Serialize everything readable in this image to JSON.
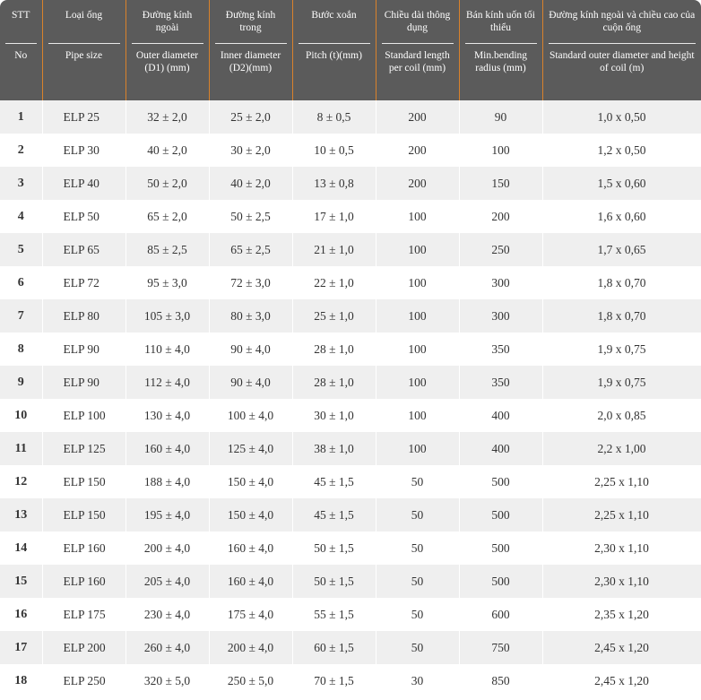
{
  "header": [
    {
      "vi": "STT",
      "en": "No"
    },
    {
      "vi": "Loại ống",
      "en": "Pipe size"
    },
    {
      "vi": "Đường kính ngoài",
      "en": "Outer diameter (D1) (mm)"
    },
    {
      "vi": "Đường kính trong",
      "en": "Inner diameter (D2)(mm)"
    },
    {
      "vi": "Bước xoắn",
      "en": "Pitch (t)(mm)"
    },
    {
      "vi": "Chiều dài thông dụng",
      "en": "Standard length per coil (mm)"
    },
    {
      "vi": "Bán kính uốn tối thiểu",
      "en": "Min.bending radius (mm)"
    },
    {
      "vi": "Đường kính ngoài và chiều cao của cuộn ống",
      "en": "Standard outer diameter and height of coil (m)"
    }
  ],
  "rows": [
    [
      "1",
      "ELP 25",
      "32 ± 2,0",
      "25 ± 2,0",
      "8 ± 0,5",
      "200",
      "90",
      "1,0 x 0,50"
    ],
    [
      "2",
      "ELP 30",
      "40 ± 2,0",
      "30 ± 2,0",
      "10 ± 0,5",
      "200",
      "100",
      "1,2 x 0,50"
    ],
    [
      "3",
      "ELP 40",
      "50 ± 2,0",
      "40 ± 2,0",
      "13 ± 0,8",
      "200",
      "150",
      "1,5 x 0,60"
    ],
    [
      "4",
      "ELP 50",
      "65 ± 2,0",
      "50 ± 2,5",
      "17 ± 1,0",
      "100",
      "200",
      "1,6 x 0,60"
    ],
    [
      "5",
      "ELP 65",
      "85 ± 2,5",
      "65 ± 2,5",
      "21 ± 1,0",
      "100",
      "250",
      "1,7 x 0,65"
    ],
    [
      "6",
      "ELP 72",
      "95 ± 3,0",
      "72 ± 3,0",
      "22 ± 1,0",
      "100",
      "300",
      "1,8 x 0,70"
    ],
    [
      "7",
      "ELP 80",
      "105 ± 3,0",
      "80 ± 3,0",
      "25 ± 1,0",
      "100",
      "300",
      "1,8 x 0,70"
    ],
    [
      "8",
      "ELP 90",
      "110 ± 4,0",
      "90 ± 4,0",
      "28 ± 1,0",
      "100",
      "350",
      "1,9 x 0,75"
    ],
    [
      "9",
      "ELP 90",
      "112 ± 4,0",
      "90 ± 4,0",
      "28 ± 1,0",
      "100",
      "350",
      "1,9 x 0,75"
    ],
    [
      "10",
      "ELP 100",
      "130 ± 4,0",
      "100 ± 4,0",
      "30 ± 1,0",
      "100",
      "400",
      "2,0 x 0,85"
    ],
    [
      "11",
      "ELP 125",
      "160 ± 4,0",
      "125 ± 4,0",
      "38 ± 1,0",
      "100",
      "400",
      "2,2 x 1,00"
    ],
    [
      "12",
      "ELP 150",
      "188 ± 4,0",
      "150 ± 4,0",
      "45 ± 1,5",
      "50",
      "500",
      "2,25 x 1,10"
    ],
    [
      "13",
      "ELP 150",
      "195 ± 4,0",
      "150 ± 4,0",
      "45 ± 1,5",
      "50",
      "500",
      "2,25 x 1,10"
    ],
    [
      "14",
      "ELP 160",
      "200 ± 4,0",
      "160 ± 4,0",
      "50 ± 1,5",
      "50",
      "500",
      "2,30 x 1,10"
    ],
    [
      "15",
      "ELP 160",
      "205 ± 4,0",
      "160 ± 4,0",
      "50 ± 1,5",
      "50",
      "500",
      "2,30 x 1,10"
    ],
    [
      "16",
      "ELP 175",
      "230 ± 4,0",
      "175 ± 4,0",
      "55 ± 1,5",
      "50",
      "600",
      "2,35 x 1,20"
    ],
    [
      "17",
      "ELP 200",
      "260 ± 4,0",
      "200 ± 4,0",
      "60 ± 1,5",
      "50",
      "750",
      "2,45 x 1,20"
    ],
    [
      "18",
      "ELP 250",
      "320 ± 5,0",
      "250 ± 5,0",
      "70 ± 1,5",
      "30",
      "850",
      "2,45 x 1,20"
    ]
  ]
}
